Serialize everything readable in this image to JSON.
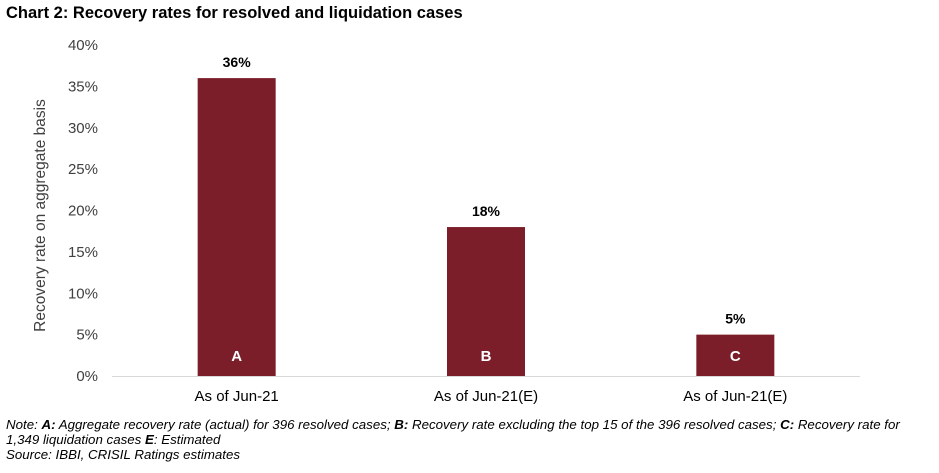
{
  "chart_data": {
    "type": "bar",
    "title": "Chart 2: Recovery rates for resolved and liquidation cases",
    "xlabel": "",
    "ylabel": "Recovery rate on aggregate basis",
    "ylim": [
      0,
      40
    ],
    "yticks": [
      "0%",
      "5%",
      "10%",
      "15%",
      "20%",
      "25%",
      "30%",
      "35%",
      "40%"
    ],
    "categories": [
      "As of Jun-21",
      "As of Jun-21(E)",
      "As of Jun-21(E)"
    ],
    "values": [
      36,
      18,
      5
    ],
    "data_labels": [
      "36%",
      "18%",
      "5%"
    ],
    "bar_letters": [
      "A",
      "B",
      "C"
    ],
    "bar_color": "#7B1E2A",
    "grid": false
  },
  "note": {
    "prefix": "Note: ",
    "a_key": "A:",
    "a_text": " Aggregate recovery rate (actual) for 396 resolved cases; ",
    "b_key": "B:",
    "b_text": " Recovery rate excluding the top 15 of the 396 resolved cases; ",
    "c_key": "C:",
    "c_text": " Recovery rate for 1,349 liquidation cases ",
    "e_key": "E",
    "e_text": ": Estimated",
    "source": "Source: IBBI, CRISIL Ratings estimates"
  }
}
